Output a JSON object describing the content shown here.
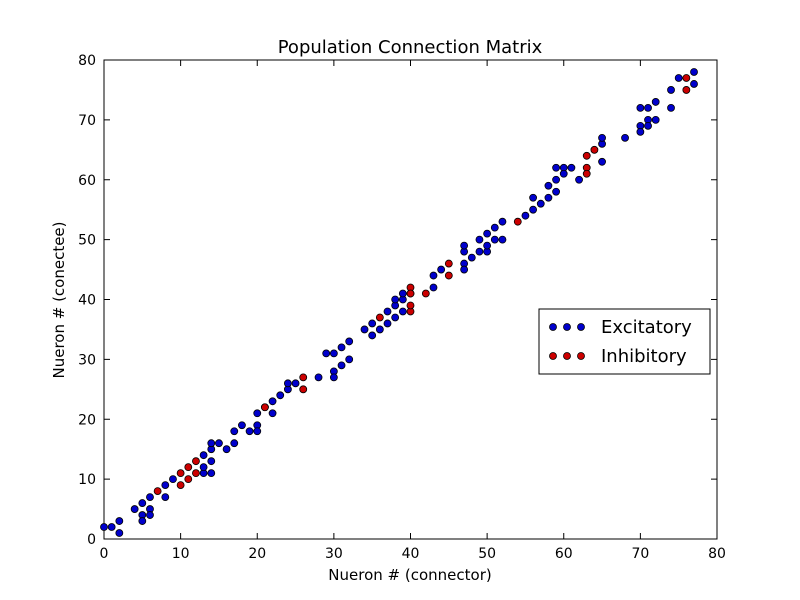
{
  "chart_data": {
    "type": "scatter",
    "title": "Population Connection Matrix",
    "xlabel": "Nueron # (connector)",
    "ylabel": "Nueron # (conectee)",
    "xlim": [
      0,
      80
    ],
    "ylim": [
      0,
      80
    ],
    "xticks": [
      0,
      10,
      20,
      30,
      40,
      50,
      60,
      70,
      80
    ],
    "yticks": [
      0,
      10,
      20,
      30,
      40,
      50,
      60,
      70,
      80
    ],
    "grid": false,
    "legend_position": "center-right",
    "series": [
      {
        "name": "Excitatory",
        "color": "#0000cc",
        "points": [
          [
            0,
            2
          ],
          [
            1,
            2
          ],
          [
            2,
            3
          ],
          [
            2,
            1
          ],
          [
            4,
            5
          ],
          [
            5,
            4
          ],
          [
            5,
            3
          ],
          [
            5,
            6
          ],
          [
            6,
            5
          ],
          [
            6,
            4
          ],
          [
            6,
            7
          ],
          [
            8,
            7
          ],
          [
            8,
            9
          ],
          [
            9,
            10
          ],
          [
            13,
            11
          ],
          [
            13,
            12
          ],
          [
            13,
            14
          ],
          [
            14,
            15
          ],
          [
            14,
            13
          ],
          [
            14,
            16
          ],
          [
            14,
            11
          ],
          [
            15,
            16
          ],
          [
            16,
            15
          ],
          [
            17,
            16
          ],
          [
            17,
            18
          ],
          [
            18,
            19
          ],
          [
            19,
            18
          ],
          [
            20,
            19
          ],
          [
            20,
            21
          ],
          [
            20,
            18
          ],
          [
            21,
            22
          ],
          [
            22,
            21
          ],
          [
            22,
            23
          ],
          [
            23,
            24
          ],
          [
            24,
            25
          ],
          [
            24,
            26
          ],
          [
            25,
            26
          ],
          [
            28,
            27
          ],
          [
            29,
            31
          ],
          [
            30,
            31
          ],
          [
            30,
            28
          ],
          [
            30,
            27
          ],
          [
            31,
            32
          ],
          [
            31,
            29
          ],
          [
            32,
            30
          ],
          [
            32,
            33
          ],
          [
            34,
            35
          ],
          [
            35,
            36
          ],
          [
            35,
            34
          ],
          [
            36,
            35
          ],
          [
            37,
            36
          ],
          [
            37,
            38
          ],
          [
            38,
            39
          ],
          [
            38,
            40
          ],
          [
            38,
            37
          ],
          [
            39,
            38
          ],
          [
            39,
            40
          ],
          [
            39,
            41
          ],
          [
            40,
            41
          ],
          [
            43,
            42
          ],
          [
            43,
            44
          ],
          [
            44,
            45
          ],
          [
            47,
            46
          ],
          [
            47,
            45
          ],
          [
            47,
            48
          ],
          [
            47,
            49
          ],
          [
            48,
            47
          ],
          [
            49,
            48
          ],
          [
            49,
            50
          ],
          [
            50,
            51
          ],
          [
            50,
            48
          ],
          [
            50,
            49
          ],
          [
            51,
            50
          ],
          [
            51,
            52
          ],
          [
            52,
            53
          ],
          [
            52,
            50
          ],
          [
            55,
            54
          ],
          [
            56,
            55
          ],
          [
            56,
            57
          ],
          [
            57,
            56
          ],
          [
            58,
            57
          ],
          [
            58,
            59
          ],
          [
            59,
            60
          ],
          [
            59,
            58
          ],
          [
            59,
            62
          ],
          [
            60,
            62
          ],
          [
            60,
            61
          ],
          [
            61,
            62
          ],
          [
            62,
            60
          ],
          [
            65,
            63
          ],
          [
            65,
            66
          ],
          [
            65,
            67
          ],
          [
            68,
            67
          ],
          [
            70,
            69
          ],
          [
            70,
            72
          ],
          [
            70,
            68
          ],
          [
            71,
            70
          ],
          [
            71,
            69
          ],
          [
            71,
            72
          ],
          [
            72,
            73
          ],
          [
            72,
            70
          ],
          [
            74,
            72
          ],
          [
            74,
            75
          ],
          [
            75,
            77
          ],
          [
            77,
            76
          ],
          [
            77,
            78
          ]
        ]
      },
      {
        "name": "Inhibitory",
        "color": "#cc0000",
        "points": [
          [
            7,
            8
          ],
          [
            10,
            9
          ],
          [
            10,
            11
          ],
          [
            11,
            10
          ],
          [
            11,
            12
          ],
          [
            12,
            13
          ],
          [
            12,
            11
          ],
          [
            21,
            22
          ],
          [
            26,
            25
          ],
          [
            26,
            27
          ],
          [
            36,
            37
          ],
          [
            40,
            42
          ],
          [
            40,
            41
          ],
          [
            40,
            38
          ],
          [
            40,
            39
          ],
          [
            42,
            41
          ],
          [
            45,
            44
          ],
          [
            45,
            46
          ],
          [
            54,
            53
          ],
          [
            63,
            62
          ],
          [
            63,
            61
          ],
          [
            63,
            64
          ],
          [
            64,
            65
          ],
          [
            76,
            77
          ],
          [
            76,
            75
          ]
        ]
      }
    ]
  }
}
